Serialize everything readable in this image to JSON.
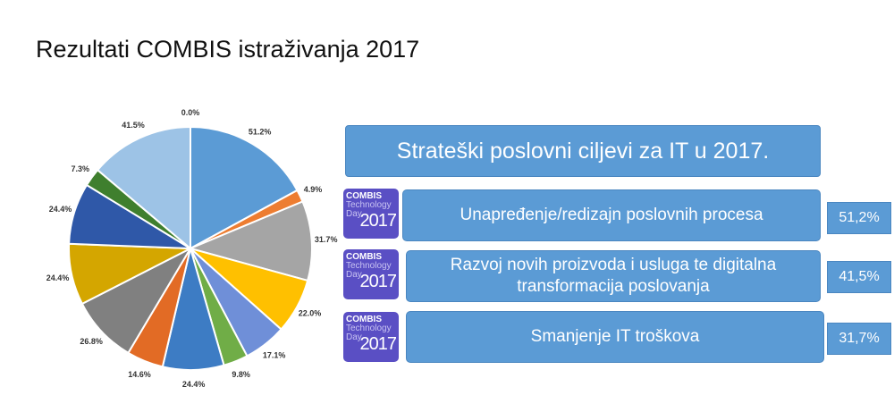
{
  "page": {
    "title": "Rezultati COMBIS istraživanja 2017"
  },
  "panel": {
    "heading": "Strateški poslovni ciljevi za IT u 2017.",
    "logo": {
      "line1": "COMBIS",
      "line2": "Technology",
      "line3": "Day",
      "line4": "2017"
    },
    "goals": [
      {
        "label": "Unapređenje/redizajn poslovnih procesa",
        "percent": "51,2%"
      },
      {
        "label": "Razvoj novih proizvoda i usluga te digitalna transformacija poslovanja",
        "percent": "41,5%"
      },
      {
        "label": "Smanjenje IT troškova",
        "percent": "31,7%"
      }
    ]
  },
  "chart_data": {
    "type": "pie",
    "labels": [
      "0.0%",
      "51.2%",
      "4.9%",
      "31.7%",
      "22.0%",
      "17.1%",
      "9.8%",
      "24.4%",
      "14.6%",
      "26.8%",
      "24.4%",
      "24.4%",
      "7.3%",
      "41.5%"
    ],
    "values": [
      0.0,
      51.2,
      4.9,
      31.7,
      22.0,
      17.1,
      9.8,
      24.4,
      14.6,
      26.8,
      24.4,
      24.4,
      7.3,
      41.5
    ],
    "colors": [
      "#5b9bd5",
      "#5b9bd5",
      "#ed7d31",
      "#a5a5a5",
      "#ffc000",
      "#6f8fd8",
      "#70ad47",
      "#3d7cc4",
      "#e26b25",
      "#808080",
      "#d4a600",
      "#2f58a8",
      "#3f7f2e",
      "#9dc3e6"
    ]
  }
}
